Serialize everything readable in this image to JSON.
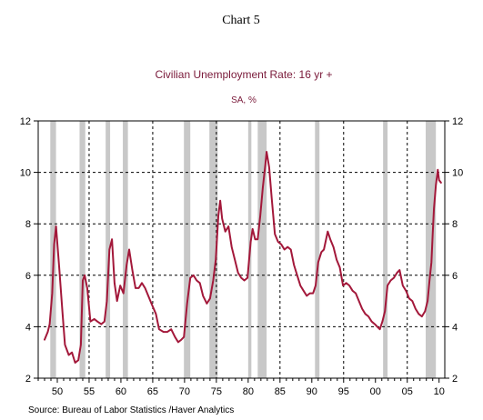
{
  "chart_data": {
    "type": "line",
    "header": "Chart 5",
    "title": "Civilian Unemployment Rate: 16 yr +",
    "subtitle": "SA, %",
    "source": "Source:  Bureau of Labor Statistics /Haver Analytics",
    "x_tick_labels": [
      "50",
      "55",
      "60",
      "65",
      "70",
      "75",
      "80",
      "85",
      "90",
      "95",
      "00",
      "05",
      "10"
    ],
    "x_tick_years": [
      1950,
      1955,
      1960,
      1965,
      1970,
      1975,
      1980,
      1985,
      1990,
      1995,
      2000,
      2005,
      2010
    ],
    "xlim": [
      1947.0,
      2010.9
    ],
    "ylim": [
      2,
      12
    ],
    "y_ticks": [
      2,
      4,
      6,
      8,
      10,
      12
    ],
    "y_tick_labels": [
      "2",
      "4",
      "6",
      "8",
      "10",
      "12"
    ],
    "grid": "dashed, at every other x tick and at y 4, 6, 8, 10",
    "line_color": "#a3183a",
    "recession_color": "#c8c8c8",
    "recessions": [
      [
        1948.9,
        1949.8
      ],
      [
        1953.5,
        1954.4
      ],
      [
        1957.6,
        1958.3
      ],
      [
        1960.3,
        1961.1
      ],
      [
        1969.9,
        1970.9
      ],
      [
        1973.9,
        1975.2
      ],
      [
        1980.0,
        1980.5
      ],
      [
        1981.5,
        1982.9
      ],
      [
        1990.5,
        1991.2
      ],
      [
        2001.2,
        2001.9
      ],
      [
        2007.9,
        2009.5
      ]
    ],
    "series": [
      {
        "x": [
          1948.0,
          1948.5,
          1948.8,
          1949.2,
          1949.5,
          1949.8,
          1950.3,
          1950.8,
          1951.2,
          1951.8,
          1952.3,
          1952.8,
          1953.3,
          1953.7,
          1954.0,
          1954.3,
          1954.7,
          1955.2,
          1955.8,
          1956.3,
          1956.9,
          1957.4,
          1957.8,
          1958.2,
          1958.6,
          1959.0,
          1959.4,
          1959.9,
          1960.4,
          1960.9,
          1961.3,
          1961.8,
          1962.3,
          1962.8,
          1963.3,
          1963.8,
          1964.3,
          1964.8,
          1965.5,
          1966.0,
          1966.7,
          1967.3,
          1967.9,
          1968.5,
          1969.0,
          1969.5,
          1969.9,
          1970.4,
          1970.9,
          1971.4,
          1971.9,
          1972.4,
          1972.9,
          1973.5,
          1974.0,
          1974.5,
          1974.9,
          1975.3,
          1975.6,
          1975.9,
          1976.4,
          1976.9,
          1977.4,
          1977.9,
          1978.4,
          1978.9,
          1979.4,
          1979.9,
          1980.4,
          1980.7,
          1981.1,
          1981.5,
          1981.9,
          1982.3,
          1982.7,
          1982.9,
          1983.3,
          1983.7,
          1984.2,
          1984.7,
          1985.2,
          1985.7,
          1986.2,
          1986.7,
          1987.2,
          1987.7,
          1988.2,
          1988.7,
          1989.2,
          1989.7,
          1990.2,
          1990.6,
          1991.0,
          1991.5,
          1991.9,
          1992.5,
          1992.9,
          1993.4,
          1993.9,
          1994.4,
          1994.9,
          1995.4,
          1995.9,
          1996.4,
          1996.9,
          1997.4,
          1997.9,
          1998.4,
          1998.9,
          1999.4,
          1999.9,
          2000.3,
          2000.7,
          2001.1,
          2001.5,
          2001.9,
          2002.4,
          2002.9,
          2003.4,
          2003.8,
          2004.3,
          2004.8,
          2005.3,
          2005.8,
          2006.3,
          2006.8,
          2007.3,
          2007.8,
          2008.2,
          2008.5,
          2008.8,
          2009.0,
          2009.2,
          2009.5,
          2009.8,
          2010.0,
          2010.3
        ],
        "y": [
          3.5,
          3.8,
          4.1,
          5.3,
          7.2,
          7.9,
          6.3,
          4.6,
          3.3,
          2.9,
          3.0,
          2.6,
          2.7,
          3.3,
          5.8,
          6.0,
          5.5,
          4.2,
          4.3,
          4.2,
          4.1,
          4.2,
          5.0,
          7.0,
          7.4,
          5.7,
          5.0,
          5.6,
          5.3,
          6.4,
          7.0,
          6.2,
          5.5,
          5.5,
          5.7,
          5.5,
          5.2,
          4.9,
          4.5,
          3.9,
          3.8,
          3.8,
          3.9,
          3.6,
          3.4,
          3.5,
          3.6,
          4.9,
          5.9,
          6.0,
          5.8,
          5.7,
          5.2,
          4.9,
          5.1,
          5.8,
          6.6,
          8.3,
          8.9,
          8.2,
          7.7,
          7.9,
          7.1,
          6.6,
          6.1,
          5.9,
          5.8,
          5.9,
          7.3,
          7.8,
          7.4,
          7.4,
          8.3,
          9.4,
          10.3,
          10.8,
          10.2,
          9.0,
          7.6,
          7.3,
          7.2,
          7.0,
          7.1,
          7.0,
          6.4,
          6.0,
          5.6,
          5.4,
          5.2,
          5.3,
          5.3,
          5.6,
          6.5,
          6.9,
          7.0,
          7.7,
          7.4,
          7.1,
          6.6,
          6.3,
          5.6,
          5.7,
          5.6,
          5.4,
          5.3,
          5.0,
          4.7,
          4.5,
          4.4,
          4.2,
          4.1,
          4.0,
          3.9,
          4.2,
          4.6,
          5.6,
          5.8,
          5.9,
          6.1,
          6.2,
          5.6,
          5.4,
          5.1,
          5.0,
          4.7,
          4.5,
          4.4,
          4.6,
          5.0,
          5.8,
          6.5,
          7.6,
          8.6,
          9.5,
          10.1,
          9.7,
          9.6
        ]
      }
    ]
  }
}
